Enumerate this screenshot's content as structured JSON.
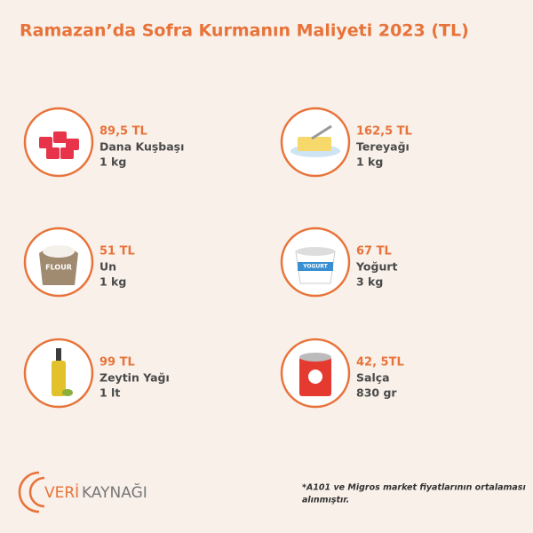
{
  "header": {
    "title": "Ramazan’da Sofra Kurmanın Maliyeti 2023 (TL)"
  },
  "items": [
    {
      "price": "89,5 TL",
      "name": "Dana Kuşbaşı",
      "amount": "1 kg"
    },
    {
      "price": "162,5 TL",
      "name": "Tereyağı",
      "amount": "1 kg"
    },
    {
      "price": "51 TL",
      "name": "Un",
      "amount": "1 kg",
      "icon_text": "FLOUR"
    },
    {
      "price": "67 TL",
      "name": "Yoğurt",
      "amount": "3 kg",
      "icon_text": "YOGURT"
    },
    {
      "price": "99 TL",
      "name": "Zeytin Yağı",
      "amount": "1 lt"
    },
    {
      "price": "42, 5TL",
      "name": "Salça",
      "amount": "830 gr"
    }
  ],
  "footer": {
    "logo_a": "VERİ",
    "logo_b": "KAYNAĞI",
    "note": [
      "*A101 ve Migros market fiyatlarının ortalaması",
      "alınmıştır."
    ]
  }
}
